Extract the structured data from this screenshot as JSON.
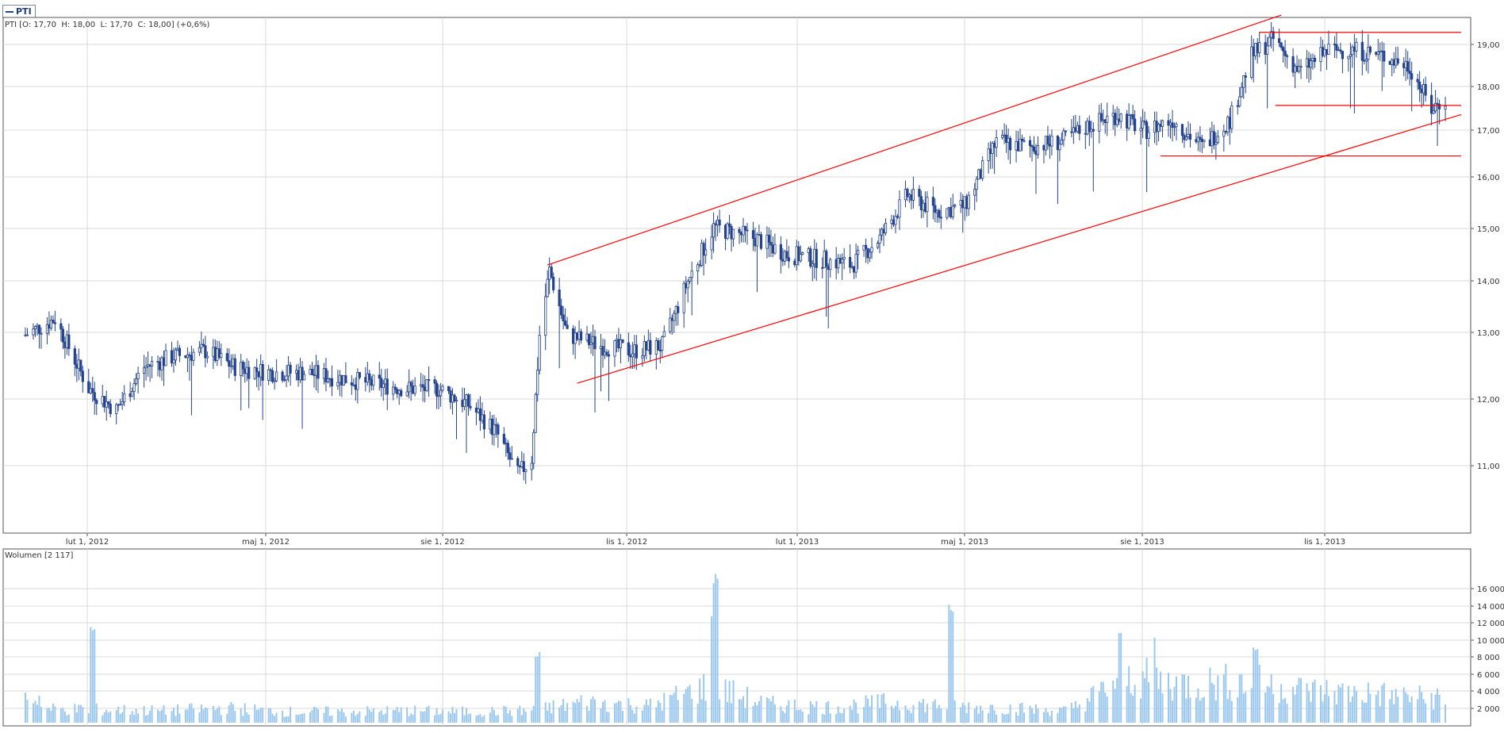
{
  "legend": {
    "symbol": "PTI"
  },
  "price_panel_label": "PTI [O: 17,70  H: 18,00  L: 17,70  C: 18,00] (+0,6%)",
  "volume_panel_label": "Wolumen [2 117]",
  "colors": {
    "price": "#24438f",
    "volume": "#9cc8ee",
    "trend": "#ff0000",
    "grid": "#d8d8d8",
    "frame": "#555555"
  },
  "chart_data": [
    {
      "type": "ohlc",
      "title": "PTI",
      "x_tick_labels": [
        "lut 1, 2012",
        "maj 1, 2012",
        "sie 1, 2012",
        "lis 1, 2012",
        "lut 1, 2013",
        "maj 1, 2013",
        "sie 1, 2013",
        "lis 1, 2013"
      ],
      "y_tick_labels": [
        "11,00",
        "12,00",
        "13,00",
        "14,00",
        "15,00",
        "16,00",
        "17,00",
        "18,00",
        "19,00"
      ],
      "ylim": [
        10.0,
        19.3
      ],
      "xlim": [
        "2012-01-05",
        "2013-12-31"
      ],
      "grid": true,
      "last_bar": {
        "open": 17.7,
        "high": 18.0,
        "low": 17.7,
        "close": 18.0,
        "change_pct": 0.6
      },
      "close_series": [
        [
          "2012-01-05",
          13.6
        ],
        [
          "2012-01-20",
          13.9
        ],
        [
          "2012-02-06",
          12.6
        ],
        [
          "2012-02-20",
          12.2
        ],
        [
          "2012-03-05",
          13.0
        ],
        [
          "2012-03-20",
          13.2
        ],
        [
          "2012-04-05",
          13.3
        ],
        [
          "2012-04-20",
          13.0
        ],
        [
          "2012-05-08",
          12.9
        ],
        [
          "2012-05-25",
          12.9
        ],
        [
          "2012-06-12",
          12.8
        ],
        [
          "2012-06-28",
          12.7
        ],
        [
          "2012-07-16",
          12.6
        ],
        [
          "2012-08-01",
          12.6
        ],
        [
          "2012-08-16",
          12.3
        ],
        [
          "2012-08-30",
          11.8
        ],
        [
          "2012-09-10",
          11.0
        ],
        [
          "2012-09-17",
          11.3
        ],
        [
          "2012-09-21",
          13.6
        ],
        [
          "2012-09-26",
          14.8
        ],
        [
          "2012-10-05",
          13.6
        ],
        [
          "2012-10-22",
          13.4
        ],
        [
          "2012-11-07",
          13.3
        ],
        [
          "2012-11-22",
          13.4
        ],
        [
          "2012-12-05",
          14.6
        ],
        [
          "2012-12-18",
          15.6
        ],
        [
          "2013-01-08",
          15.4
        ],
        [
          "2013-01-24",
          15.1
        ],
        [
          "2013-02-11",
          15.0
        ],
        [
          "2013-02-26",
          14.9
        ],
        [
          "2013-03-12",
          15.4
        ],
        [
          "2013-03-26",
          16.2
        ],
        [
          "2013-04-10",
          15.9
        ],
        [
          "2013-04-24",
          16.0
        ],
        [
          "2013-05-10",
          17.2
        ],
        [
          "2013-05-27",
          17.1
        ],
        [
          "2013-06-12",
          17.2
        ],
        [
          "2013-06-26",
          17.5
        ],
        [
          "2013-07-10",
          17.7
        ],
        [
          "2013-07-24",
          17.4
        ],
        [
          "2013-08-07",
          17.6
        ],
        [
          "2013-08-22",
          17.1
        ],
        [
          "2013-09-05",
          17.6
        ],
        [
          "2013-09-16",
          18.8
        ],
        [
          "2013-09-27",
          19.1
        ],
        [
          "2013-10-10",
          18.5
        ],
        [
          "2013-10-25",
          18.9
        ],
        [
          "2013-11-07",
          18.9
        ],
        [
          "2013-11-21",
          18.8
        ],
        [
          "2013-12-05",
          18.6
        ],
        [
          "2013-12-16",
          17.8
        ],
        [
          "2013-12-23",
          18.0
        ]
      ],
      "annotations": {
        "channel_upper": [
          [
            "2012-09-25",
            14.9
          ],
          [
            "2013-10-01",
            19.55
          ]
        ],
        "channel_lower": [
          [
            "2012-10-10",
            12.7
          ],
          [
            "2013-12-31",
            17.7
          ]
        ],
        "horizontal_lines": [
          {
            "from": "2013-09-20",
            "to": "2013-12-31",
            "value": 19.23
          },
          {
            "from": "2013-09-28",
            "to": "2013-12-31",
            "value": 17.87
          },
          {
            "from": "2013-08-01",
            "to": "2013-12-31",
            "value": 16.93
          }
        ]
      }
    },
    {
      "type": "bar",
      "title": "Wolumen",
      "y_tick_labels": [
        "2 000",
        "4 000",
        "6 000",
        "8 000",
        "10 000",
        "12 000",
        "14 000",
        "16 000"
      ],
      "ylim": [
        0,
        18500
      ],
      "last_value": 2117,
      "volume_series": [
        [
          "2012-01",
          1500
        ],
        [
          "2012-02",
          1400
        ],
        [
          "2012-02-08",
          11000
        ],
        [
          "2012-03",
          1300
        ],
        [
          "2012-04",
          1600
        ],
        [
          "2012-05",
          1200
        ],
        [
          "2012-06",
          1200
        ],
        [
          "2012-07",
          1300
        ],
        [
          "2012-08",
          1200
        ],
        [
          "2012-09",
          1300
        ],
        [
          "2012-09-20",
          7800
        ],
        [
          "2012-10",
          2300
        ],
        [
          "2012-11",
          1800
        ],
        [
          "2012-12",
          4000
        ],
        [
          "2012-12-17",
          12500
        ],
        [
          "2012-12-19",
          16500
        ],
        [
          "2013-01",
          2000
        ],
        [
          "2013-02",
          1700
        ],
        [
          "2013-03",
          2200
        ],
        [
          "2013-04-17",
          13000
        ],
        [
          "2013-05",
          1600
        ],
        [
          "2013-06",
          1300
        ],
        [
          "2013-07",
          5000
        ],
        [
          "2013-07-12",
          10000
        ],
        [
          "2013-07-28",
          10200
        ],
        [
          "2013-08",
          4200
        ],
        [
          "2013-09",
          4500
        ],
        [
          "2013-09-18",
          9000
        ],
        [
          "2013-10",
          3500
        ],
        [
          "2013-11",
          3200
        ],
        [
          "2013-12",
          2700
        ],
        [
          "2013-12-23",
          2117
        ]
      ]
    }
  ]
}
